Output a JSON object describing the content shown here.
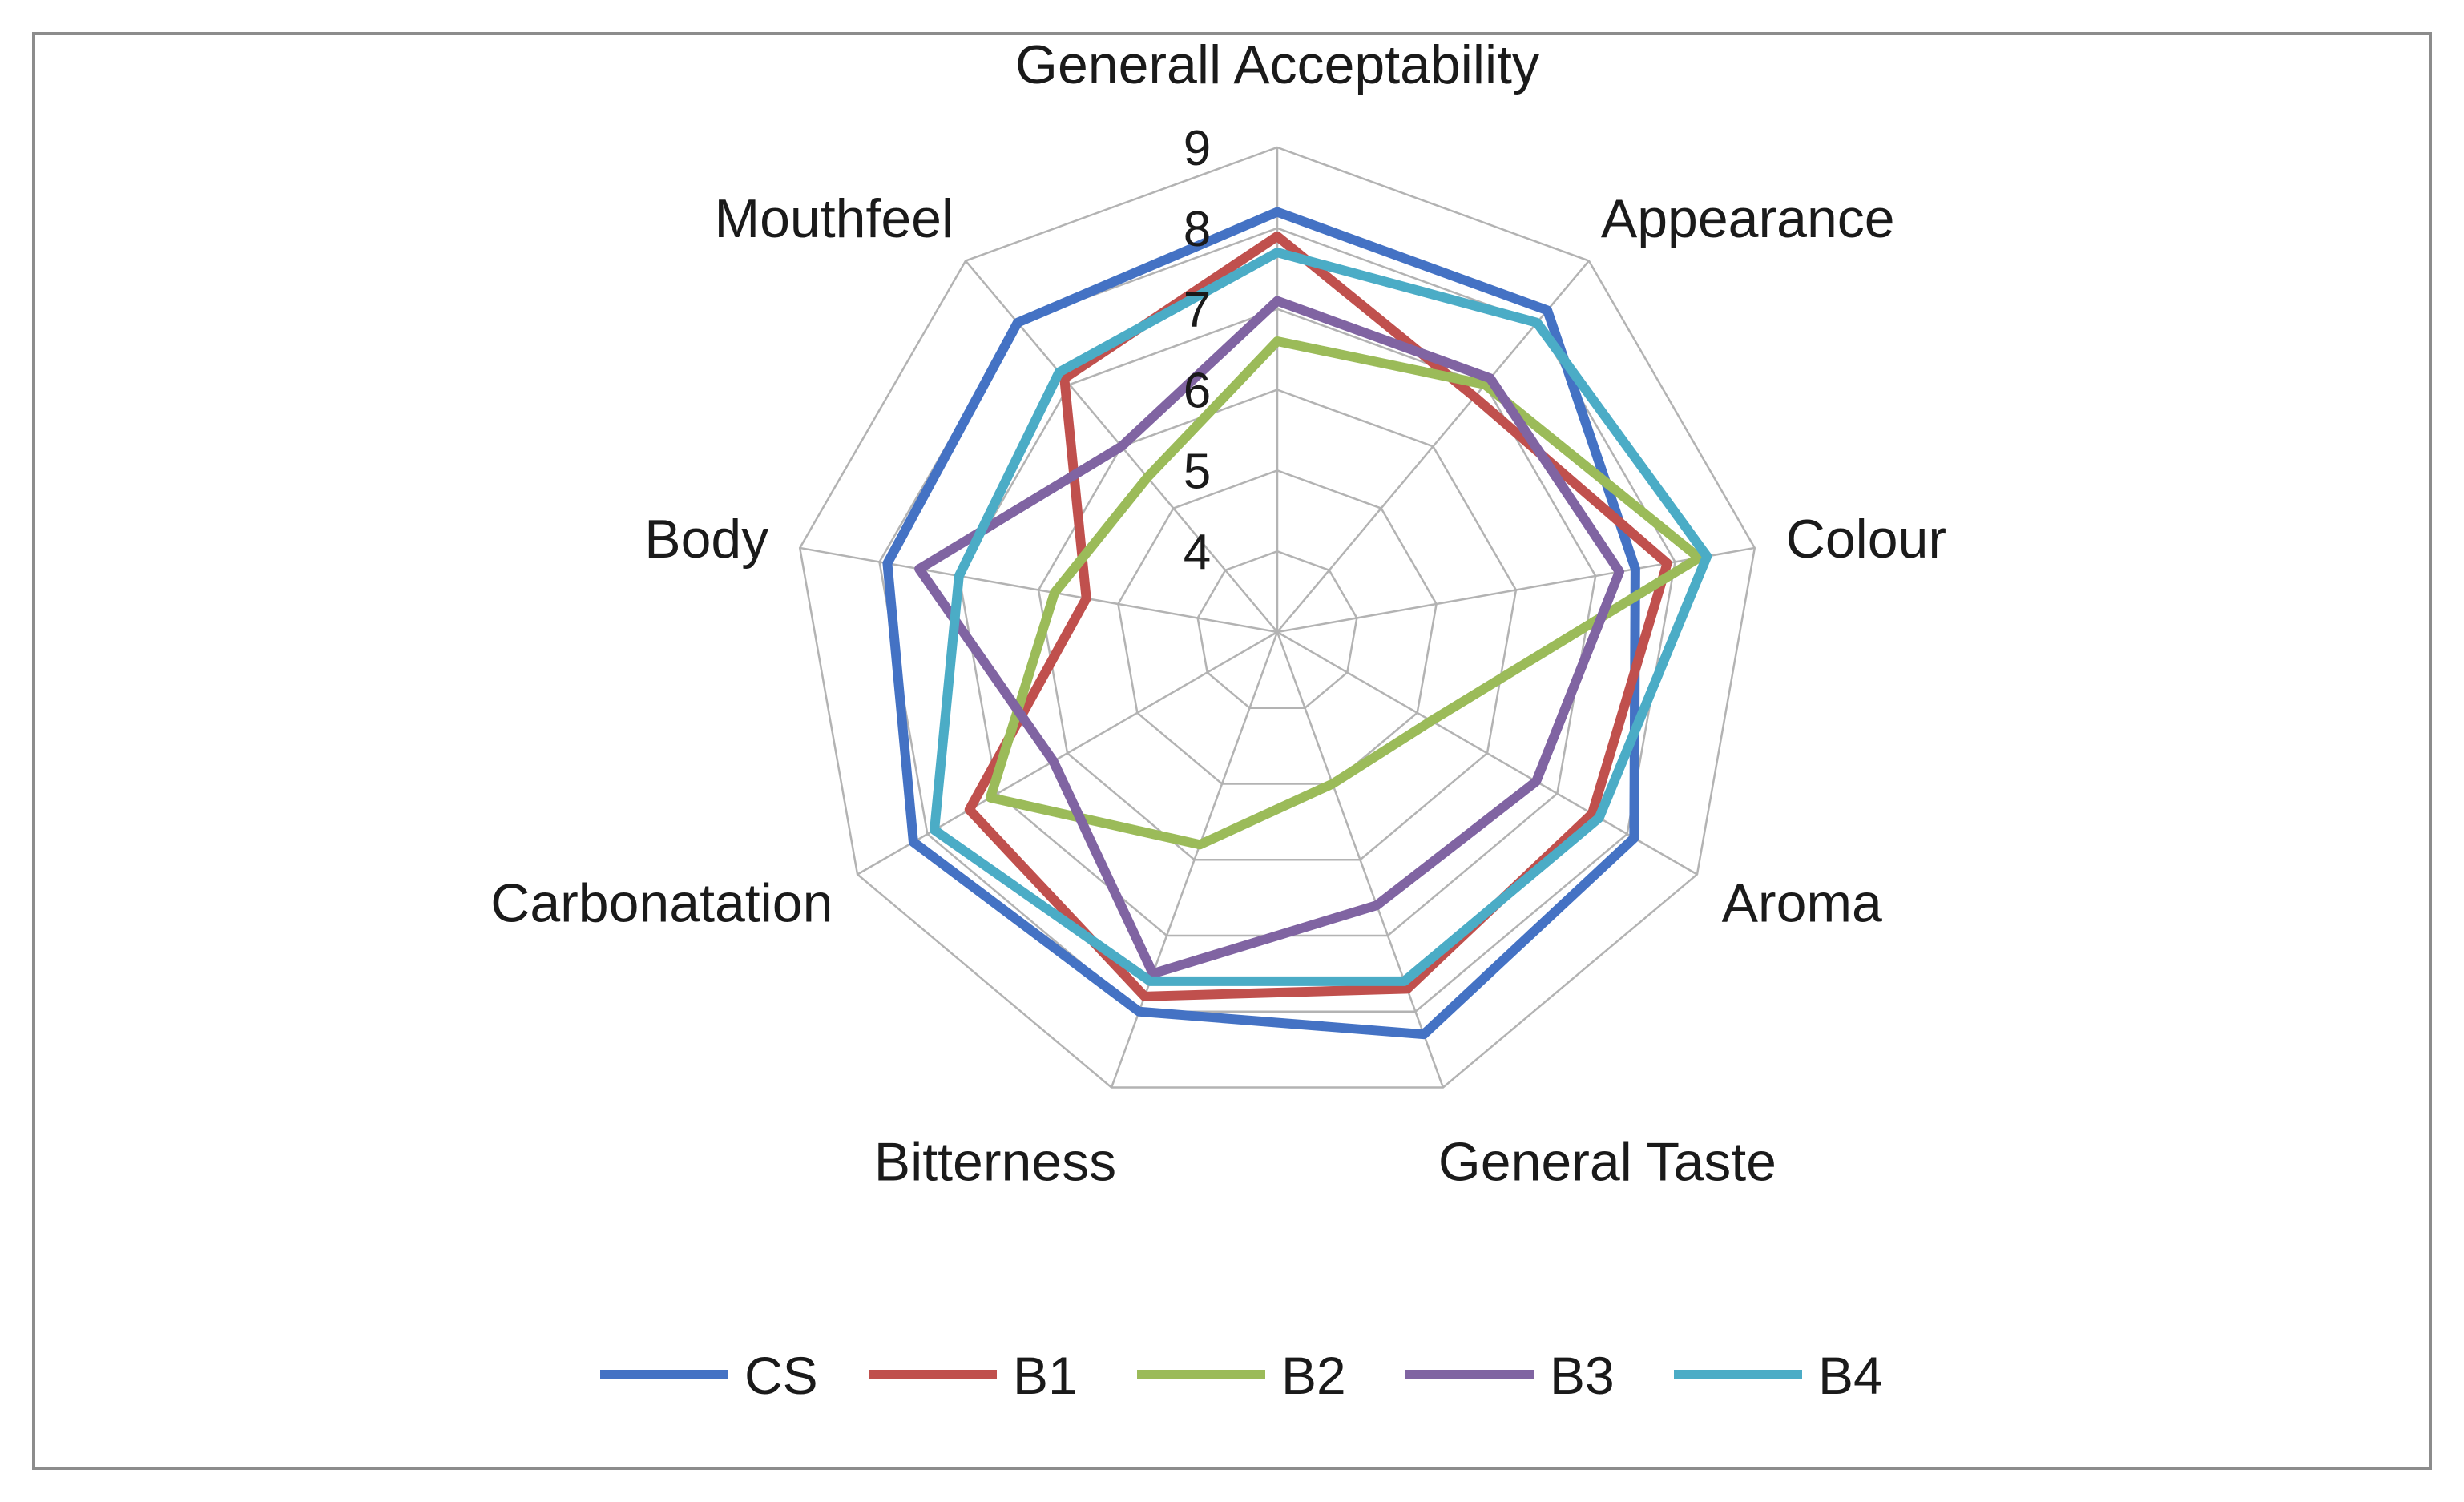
{
  "chart_data": {
    "type": "radar",
    "title": "",
    "axes": [
      "Generall Acceptability",
      "Appearance",
      "Colour",
      "Aroma",
      "General Taste",
      "Bitterness",
      "Carbonatation",
      "Body",
      "Mouthfeel"
    ],
    "r_range": [
      3,
      9
    ],
    "ticks": [
      4,
      5,
      6,
      7,
      8,
      9
    ],
    "tick_labels": [
      "4",
      "5",
      "6",
      "7",
      "8",
      "9"
    ],
    "series": [
      {
        "name": "CS",
        "color": "#4472C4",
        "values": [
          8.2,
          8.2,
          7.5,
          8.1,
          8.3,
          8.0,
          8.2,
          7.9,
          8.0
        ]
      },
      {
        "name": "B1",
        "color": "#C0504D",
        "values": [
          7.9,
          6.8,
          7.9,
          7.5,
          7.7,
          7.8,
          7.4,
          5.4,
          7.1
        ]
      },
      {
        "name": "B2",
        "color": "#9BBB59",
        "values": [
          6.6,
          7.0,
          8.3,
          5.2,
          5.0,
          5.8,
          7.1,
          5.8,
          5.5
        ]
      },
      {
        "name": "B3",
        "color": "#8064A2",
        "values": [
          7.1,
          7.1,
          7.3,
          6.7,
          6.6,
          7.5,
          6.2,
          7.5,
          6.0
        ]
      },
      {
        "name": "B4",
        "color": "#4BACC6",
        "values": [
          7.7,
          8.0,
          8.4,
          7.6,
          7.6,
          7.6,
          7.9,
          7.0,
          7.2
        ]
      }
    ],
    "legend_position": "bottom",
    "grid": true
  }
}
